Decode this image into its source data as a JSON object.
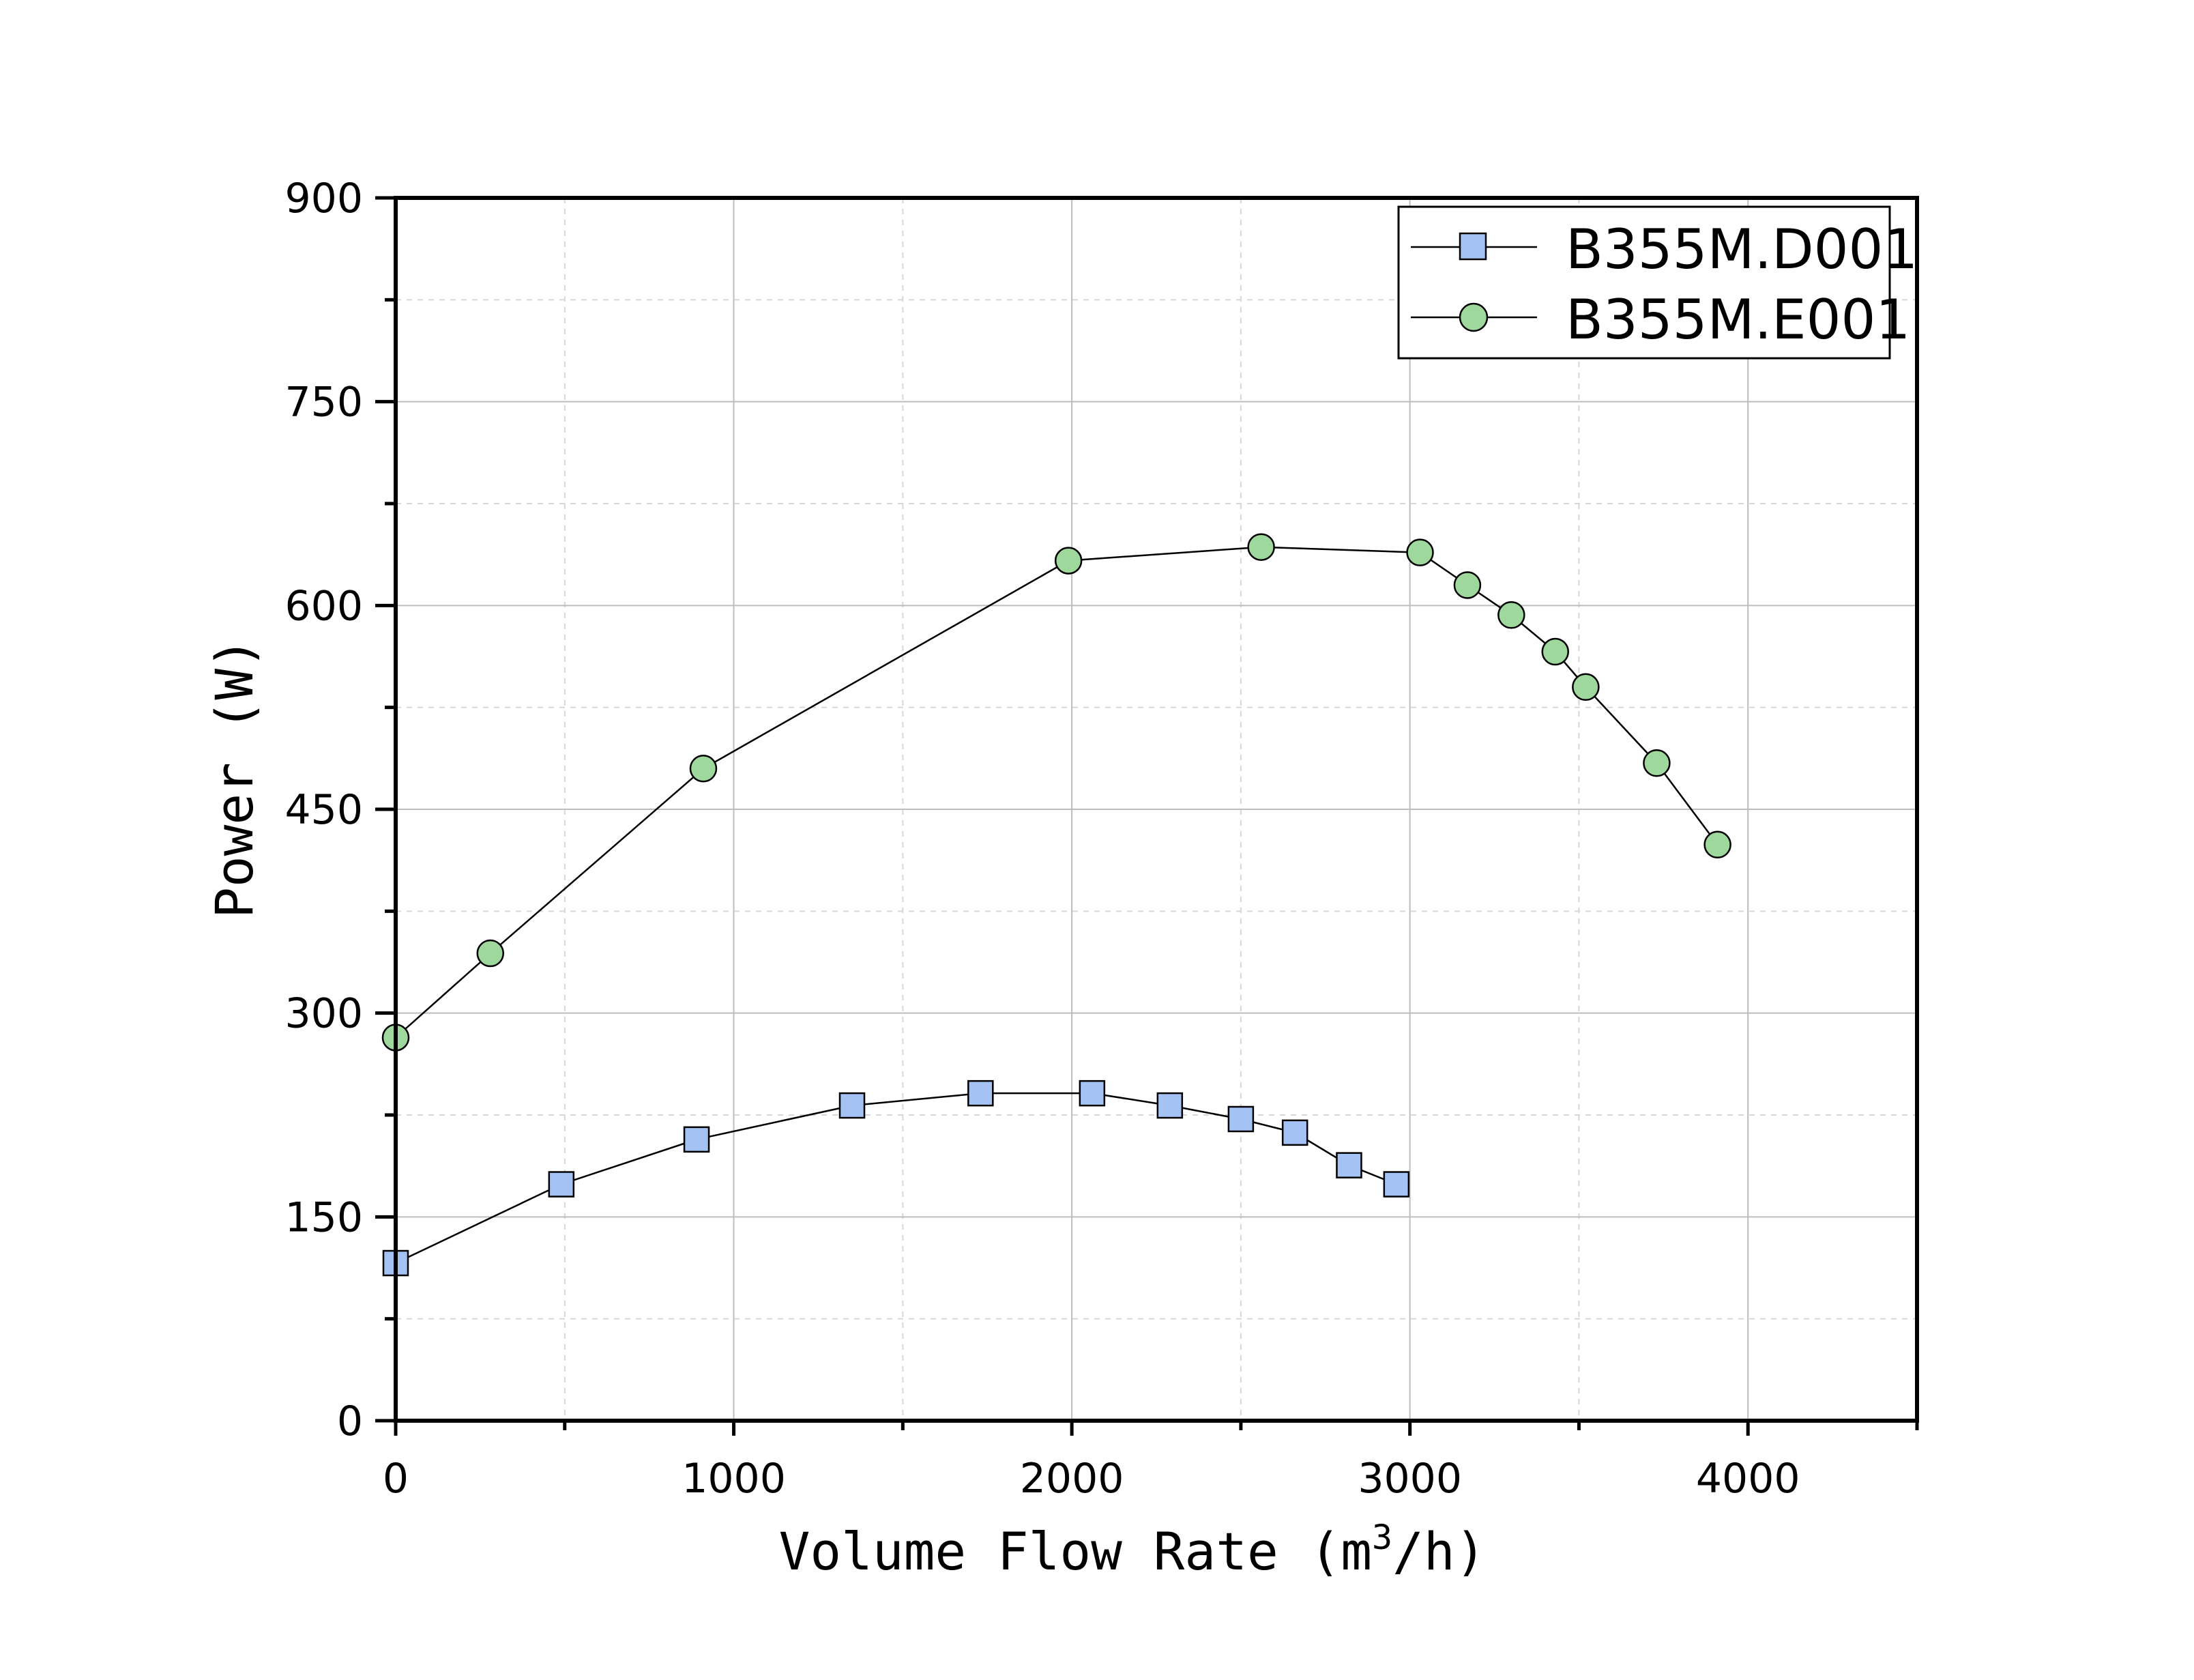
{
  "chart_data": {
    "type": "line",
    "title": "",
    "xlabel": "Volume Flow Rate (m",
    "xlabel_sup": "3",
    "xlabel_tail": "/h)",
    "ylabel": "Power (W)",
    "xlim": [
      0,
      4500
    ],
    "ylim": [
      0,
      900
    ],
    "x_ticks": [
      "0",
      "1000",
      "2000",
      "3000",
      "4000"
    ],
    "y_ticks": [
      "0",
      "150",
      "300",
      "450",
      "600",
      "750",
      "900"
    ],
    "grid": true,
    "legend_position": "top-right",
    "series": [
      {
        "name": "B355M.D001",
        "marker": "square",
        "color": "#a4c2f4",
        "x": [
          0,
          490,
          890,
          1350,
          1730,
          2060,
          2290,
          2500,
          2660,
          2820,
          2960
        ],
        "y": [
          116,
          174,
          207,
          232,
          241,
          241,
          232,
          222,
          212,
          188,
          174
        ]
      },
      {
        "name": "B355M.E001",
        "marker": "circle",
        "color": "#9ed89c",
        "x": [
          0,
          280,
          910,
          1990,
          2560,
          3030,
          3170,
          3300,
          3430,
          3520,
          3730,
          3910
        ],
        "y": [
          282,
          344,
          480,
          633,
          643,
          639,
          615,
          593,
          566,
          540,
          484,
          424
        ]
      }
    ]
  },
  "colors": {
    "axis": "#000000",
    "grid_major": "#bdbdbd",
    "grid_minor": "#d6d6d6",
    "line": "#000000"
  }
}
